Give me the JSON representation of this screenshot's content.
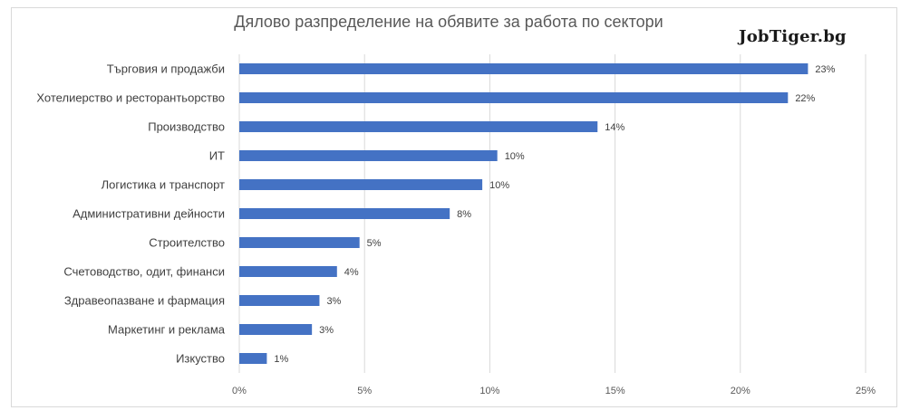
{
  "brand": "JobTiger.bg",
  "chart_data": {
    "type": "bar",
    "orientation": "horizontal",
    "title": "Дялово разпределение на обявите за работа по сектори",
    "categories": [
      "Търговия и продажби",
      "Хотелиерство и ресторантьорство",
      "Производство",
      "ИТ",
      "Логистика и транспорт",
      "Административни дейности",
      "Строителство",
      "Счетоводство, одит, финанси",
      "Здравеопазване и фармация",
      "Маркетинг и реклама",
      "Изкуство"
    ],
    "values": [
      22.7,
      21.9,
      14.3,
      10.3,
      9.7,
      8.4,
      4.8,
      3.9,
      3.2,
      2.9,
      1.1
    ],
    "data_labels": [
      "23%",
      "22%",
      "14%",
      "10%",
      "10%",
      "8%",
      "5%",
      "4%",
      "3%",
      "3%",
      "1%"
    ],
    "xlim": [
      0,
      25
    ],
    "xticks": [
      0,
      5,
      10,
      15,
      20,
      25
    ],
    "xtick_labels": [
      "0%",
      "5%",
      "10%",
      "15%",
      "20%",
      "25%"
    ],
    "grid": true,
    "colors": {
      "bar": "#4472c4",
      "grid": "#d9d9d9",
      "label": "#404040",
      "tick": "#595959"
    }
  }
}
